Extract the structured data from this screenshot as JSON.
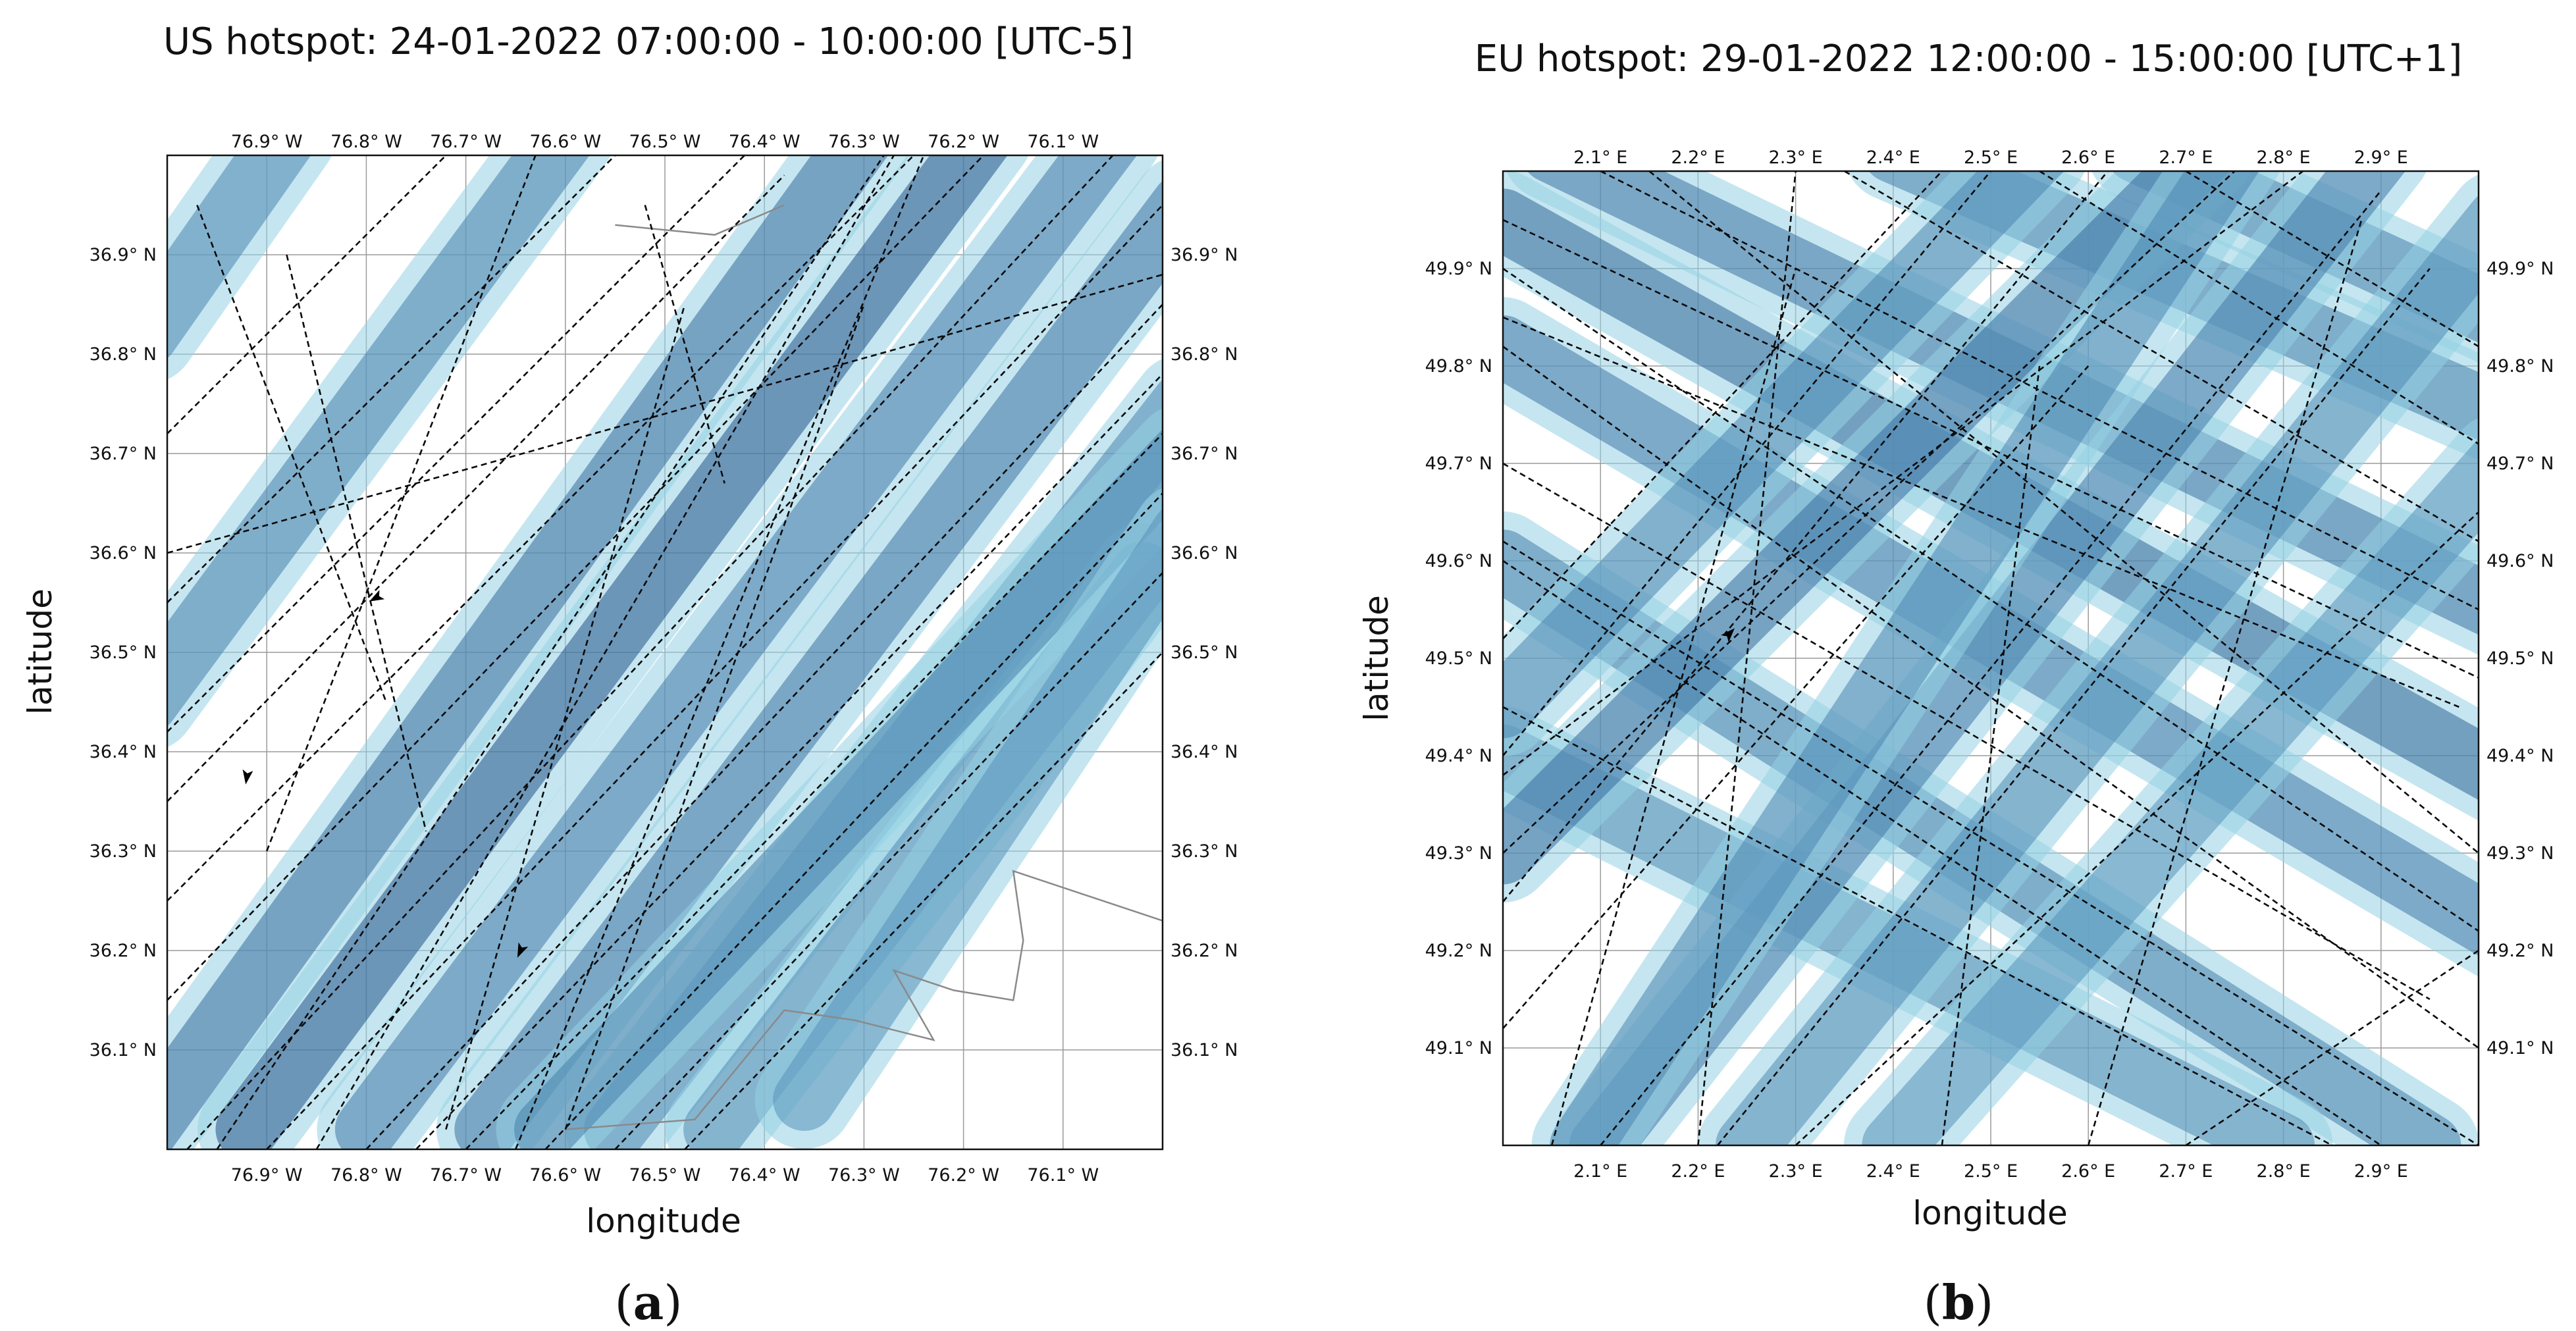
{
  "chart_data": [
    {
      "type": "map",
      "panel": "a",
      "title": "US hotspot: 24-01-2022 07:00:00 - 10:00:00 [UTC-5]",
      "xlabel": "longitude",
      "ylabel": "latitude",
      "xlim": [
        -77.0,
        -76.0
      ],
      "ylim": [
        36.0,
        37.0
      ],
      "xticks": [
        {
          "v": -76.9,
          "label": "76.9° W"
        },
        {
          "v": -76.8,
          "label": "76.8° W"
        },
        {
          "v": -76.7,
          "label": "76.7° W"
        },
        {
          "v": -76.6,
          "label": "76.6° W"
        },
        {
          "v": -76.5,
          "label": "76.5° W"
        },
        {
          "v": -76.4,
          "label": "76.4° W"
        },
        {
          "v": -76.3,
          "label": "76.3° W"
        },
        {
          "v": -76.2,
          "label": "76.2° W"
        },
        {
          "v": -76.1,
          "label": "76.1° W"
        }
      ],
      "yticks": [
        {
          "v": 36.9,
          "label": "36.9° N"
        },
        {
          "v": 36.8,
          "label": "36.8° N"
        },
        {
          "v": 36.7,
          "label": "36.7° N"
        },
        {
          "v": 36.6,
          "label": "36.6° N"
        },
        {
          "v": 36.5,
          "label": "36.5° N"
        },
        {
          "v": 36.4,
          "label": "36.4° N"
        },
        {
          "v": 36.3,
          "label": "36.3° N"
        },
        {
          "v": 36.2,
          "label": "36.2° N"
        },
        {
          "v": 36.1,
          "label": "36.1° N"
        }
      ],
      "bands": [
        {
          "from": [
            -77.02,
            36.02
          ],
          "to": [
            -76.3,
            37.02
          ],
          "shade": 0.7
        },
        {
          "from": [
            -76.92,
            36.02
          ],
          "to": [
            -76.18,
            37.02
          ],
          "shade": 0.9
        },
        {
          "from": [
            -77.02,
            36.45
          ],
          "to": [
            -76.6,
            37.02
          ],
          "shade": 0.55
        },
        {
          "from": [
            -77.02,
            36.82
          ],
          "to": [
            -76.88,
            37.02
          ],
          "shade": 0.5
        },
        {
          "from": [
            -76.8,
            36.02
          ],
          "to": [
            -76.05,
            37.02
          ],
          "shade": 0.6
        },
        {
          "from": [
            -76.68,
            36.02
          ],
          "to": [
            -75.98,
            36.95
          ],
          "shade": 0.65
        },
        {
          "from": [
            -76.55,
            36.02
          ],
          "to": [
            -75.98,
            36.75
          ],
          "shade": 0.5
        },
        {
          "from": [
            -76.45,
            36.02
          ],
          "to": [
            -76.02,
            36.58
          ],
          "shade": 0.45
        },
        {
          "from": [
            -76.62,
            36.02
          ],
          "to": [
            -75.98,
            36.7
          ],
          "shade": 0.55
        },
        {
          "from": [
            -76.36,
            36.05
          ],
          "to": [
            -75.98,
            36.62
          ],
          "shade": 0.4
        }
      ],
      "tracks": [
        {
          "from": [
            -77.0,
            36.25
          ],
          "to": [
            -76.25,
            37.0
          ]
        },
        {
          "from": [
            -77.0,
            36.15
          ],
          "to": [
            -76.18,
            37.0
          ]
        },
        {
          "from": [
            -76.98,
            36.0
          ],
          "to": [
            -76.05,
            37.0
          ]
        },
        {
          "from": [
            -76.9,
            36.0
          ],
          "to": [
            -76.0,
            36.95
          ]
        },
        {
          "from": [
            -76.8,
            36.0
          ],
          "to": [
            -76.0,
            36.85
          ]
        },
        {
          "from": [
            -76.75,
            36.0
          ],
          "to": [
            -76.0,
            36.78
          ]
        },
        {
          "from": [
            -76.7,
            36.0
          ],
          "to": [
            -76.0,
            36.72
          ]
        },
        {
          "from": [
            -76.62,
            36.0
          ],
          "to": [
            -76.0,
            36.66
          ]
        },
        {
          "from": [
            -76.55,
            36.0
          ],
          "to": [
            -76.0,
            36.58
          ]
        },
        {
          "from": [
            -76.48,
            36.0
          ],
          "to": [
            -76.0,
            36.5
          ]
        },
        {
          "from": [
            -77.0,
            36.72
          ],
          "to": [
            -76.72,
            37.0
          ]
        },
        {
          "from": [
            -77.0,
            36.55
          ],
          "to": [
            -76.55,
            37.0
          ]
        },
        {
          "from": [
            -77.0,
            36.42
          ],
          "to": [
            -76.42,
            37.0
          ]
        },
        {
          "from": [
            -76.95,
            36.0
          ],
          "to": [
            -76.28,
            37.0
          ]
        },
        {
          "from": [
            -76.85,
            36.0
          ],
          "to": [
            -76.27,
            37.0
          ]
        },
        {
          "from": [
            -76.65,
            36.0
          ],
          "to": [
            -76.24,
            37.0
          ]
        },
        {
          "from": [
            -76.6,
            36.02
          ],
          "to": [
            -76.3,
            36.85
          ]
        },
        {
          "from": [
            -77.0,
            36.6
          ],
          "to": [
            -76.0,
            36.88
          ]
        },
        {
          "from": [
            -76.9,
            36.3
          ],
          "to": [
            -76.63,
            37.0
          ]
        },
        {
          "from": [
            -76.97,
            36.95
          ],
          "to": [
            -76.78,
            36.45
          ]
        },
        {
          "from": [
            -76.88,
            36.9
          ],
          "to": [
            -76.74,
            36.32
          ]
        },
        {
          "from": [
            -76.72,
            36.02
          ],
          "to": [
            -76.48,
            36.85
          ]
        },
        {
          "from": [
            -76.52,
            36.95
          ],
          "to": [
            -76.44,
            36.67
          ]
        },
        {
          "from": [
            -77.0,
            36.35
          ],
          "to": [
            -76.38,
            36.98
          ]
        }
      ],
      "coastline": [
        [
          -76.6,
          36.02
        ],
        [
          -76.47,
          36.03
        ],
        [
          -76.38,
          36.14
        ],
        [
          -76.31,
          36.13
        ],
        [
          -76.23,
          36.11
        ],
        [
          -76.27,
          36.18
        ],
        [
          -76.21,
          36.16
        ],
        [
          -76.15,
          36.15
        ],
        [
          -76.14,
          36.21
        ],
        [
          -76.15,
          36.28
        ],
        [
          -76.09,
          36.26
        ],
        [
          -76.0,
          36.23
        ]
      ],
      "coastline_top": [
        [
          -76.55,
          36.93
        ],
        [
          -76.45,
          36.92
        ],
        [
          -76.38,
          36.95
        ]
      ],
      "arrows": [
        {
          "at": [
            -76.79,
            36.555
          ],
          "dir": [
            -1.0,
            -0.55
          ]
        },
        {
          "at": [
            -76.92,
            36.375
          ],
          "dir": [
            -0.15,
            -1.0
          ]
        },
        {
          "at": [
            -76.645,
            36.2
          ],
          "dir": [
            -0.45,
            -1.0
          ]
        }
      ]
    },
    {
      "type": "map",
      "panel": "b",
      "title": "EU hotspot: 29-01-2022 12:00:00 - 15:00:00 [UTC+1]",
      "xlabel": "longitude",
      "ylabel": "latitude",
      "xlim": [
        2.0,
        3.0
      ],
      "ylim": [
        49.0,
        50.0
      ],
      "xticks": [
        {
          "v": 2.1,
          "label": "2.1° E"
        },
        {
          "v": 2.2,
          "label": "2.2° E"
        },
        {
          "v": 2.3,
          "label": "2.3° E"
        },
        {
          "v": 2.4,
          "label": "2.4° E"
        },
        {
          "v": 2.5,
          "label": "2.5° E"
        },
        {
          "v": 2.6,
          "label": "2.6° E"
        },
        {
          "v": 2.7,
          "label": "2.7° E"
        },
        {
          "v": 2.8,
          "label": "2.8° E"
        },
        {
          "v": 2.9,
          "label": "2.9° E"
        }
      ],
      "yticks": [
        {
          "v": 49.9,
          "label": "49.9° N"
        },
        {
          "v": 49.8,
          "label": "49.8° N"
        },
        {
          "v": 49.7,
          "label": "49.7° N"
        },
        {
          "v": 49.6,
          "label": "49.6° N"
        },
        {
          "v": 49.5,
          "label": "49.5° N"
        },
        {
          "v": 49.4,
          "label": "49.4° N"
        },
        {
          "v": 49.3,
          "label": "49.3° N"
        },
        {
          "v": 49.2,
          "label": "49.2° N"
        },
        {
          "v": 49.1,
          "label": "49.1° N"
        }
      ],
      "bands": [
        {
          "from": [
            2.0,
            49.95
          ],
          "to": [
            3.02,
            49.38
          ],
          "shade": 0.75
        },
        {
          "from": [
            2.0,
            49.82
          ],
          "to": [
            3.02,
            49.22
          ],
          "shade": 0.6
        },
        {
          "from": [
            2.05,
            50.02
          ],
          "to": [
            3.02,
            49.55
          ],
          "shade": 0.65
        },
        {
          "from": [
            2.4,
            50.02
          ],
          "to": [
            3.02,
            49.75
          ],
          "shade": 0.55
        },
        {
          "from": [
            2.65,
            50.02
          ],
          "to": [
            3.02,
            49.85
          ],
          "shade": 0.55
        },
        {
          "from": [
            2.0,
            49.6
          ],
          "to": [
            2.95,
            49.0
          ],
          "shade": 0.55
        },
        {
          "from": [
            2.0,
            49.4
          ],
          "to": [
            2.8,
            49.0
          ],
          "shade": 0.45
        },
        {
          "from": [
            2.0,
            49.3
          ],
          "to": [
            2.72,
            50.02
          ],
          "shade": 0.7
        },
        {
          "from": [
            2.1,
            49.0
          ],
          "to": [
            2.9,
            50.02
          ],
          "shade": 0.6
        },
        {
          "from": [
            2.0,
            49.45
          ],
          "to": [
            2.55,
            50.02
          ],
          "shade": 0.5
        },
        {
          "from": [
            2.25,
            49.0
          ],
          "to": [
            3.02,
            49.95
          ],
          "shade": 0.45
        },
        {
          "from": [
            2.08,
            49.0
          ],
          "to": [
            2.75,
            50.02
          ],
          "shade": 0.5
        },
        {
          "from": [
            2.4,
            49.0
          ],
          "to": [
            3.02,
            49.7
          ],
          "shade": 0.4
        }
      ],
      "tracks": [
        {
          "from": [
            2.0,
            49.62
          ],
          "to": [
            3.0,
            49.0
          ]
        },
        {
          "from": [
            2.0,
            49.6
          ],
          "to": [
            2.9,
            49.0
          ]
        },
        {
          "from": [
            2.0,
            49.9
          ],
          "to": [
            3.0,
            49.22
          ]
        },
        {
          "from": [
            2.0,
            49.82
          ],
          "to": [
            3.0,
            49.1
          ]
        },
        {
          "from": [
            2.0,
            49.95
          ],
          "to": [
            3.0,
            49.48
          ]
        },
        {
          "from": [
            2.1,
            50.0
          ],
          "to": [
            3.0,
            49.55
          ]
        },
        {
          "from": [
            2.35,
            50.0
          ],
          "to": [
            3.0,
            49.62
          ]
        },
        {
          "from": [
            2.55,
            50.0
          ],
          "to": [
            3.0,
            49.72
          ]
        },
        {
          "from": [
            2.7,
            50.0
          ],
          "to": [
            3.0,
            49.82
          ]
        },
        {
          "from": [
            2.0,
            49.7
          ],
          "to": [
            2.95,
            49.15
          ]
        },
        {
          "from": [
            2.0,
            49.45
          ],
          "to": [
            2.85,
            49.0
          ]
        },
        {
          "from": [
            2.0,
            49.3
          ],
          "to": [
            2.75,
            50.0
          ]
        },
        {
          "from": [
            2.0,
            49.38
          ],
          "to": [
            2.82,
            50.0
          ]
        },
        {
          "from": [
            2.0,
            49.25
          ],
          "to": [
            2.62,
            50.0
          ]
        },
        {
          "from": [
            2.0,
            49.12
          ],
          "to": [
            2.6,
            49.8
          ]
        },
        {
          "from": [
            2.1,
            49.0
          ],
          "to": [
            2.9,
            49.98
          ]
        },
        {
          "from": [
            2.22,
            49.0
          ],
          "to": [
            2.95,
            49.9
          ]
        },
        {
          "from": [
            2.0,
            49.4
          ],
          "to": [
            2.5,
            50.0
          ]
        },
        {
          "from": [
            2.0,
            49.52
          ],
          "to": [
            2.45,
            50.0
          ]
        },
        {
          "from": [
            2.3,
            49.0
          ],
          "to": [
            3.0,
            49.65
          ]
        },
        {
          "from": [
            2.05,
            49.0
          ],
          "to": [
            2.3,
            49.9
          ]
        },
        {
          "from": [
            2.2,
            49.0
          ],
          "to": [
            2.3,
            50.0
          ]
        },
        {
          "from": [
            2.6,
            49.0
          ],
          "to": [
            2.88,
            49.95
          ]
        },
        {
          "from": [
            2.7,
            49.0
          ],
          "to": [
            3.0,
            49.2
          ]
        },
        {
          "from": [
            2.0,
            49.85
          ],
          "to": [
            2.98,
            49.45
          ]
        },
        {
          "from": [
            2.15,
            50.0
          ],
          "to": [
            3.0,
            49.3
          ]
        },
        {
          "from": [
            2.45,
            49.0
          ],
          "to": [
            2.55,
            49.8
          ]
        }
      ],
      "coastline": [],
      "coastline_top": [],
      "arrows": [
        {
          "at": [
            2.232,
            49.525
          ],
          "dir": [
            0.7,
            0.75
          ]
        }
      ]
    }
  ],
  "captions": [
    "(a)",
    "(b)"
  ]
}
